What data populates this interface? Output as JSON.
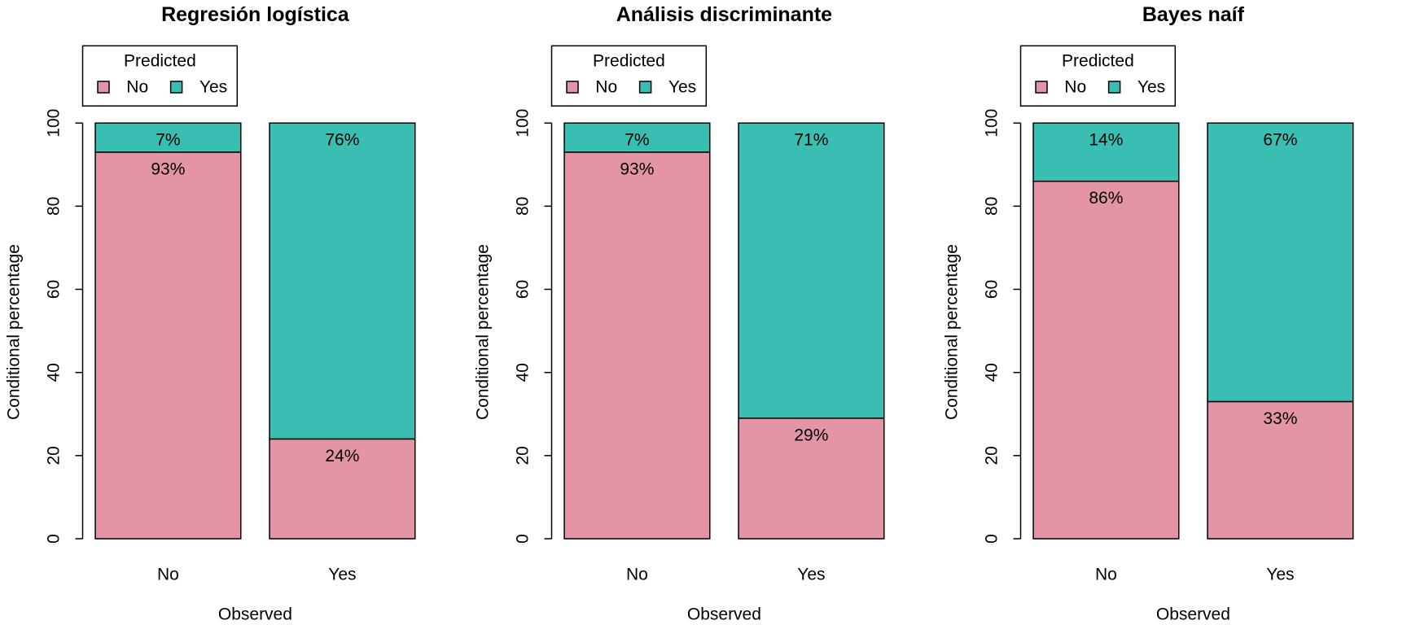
{
  "chart_data": [
    {
      "type": "bar",
      "stacking": "percent",
      "title": "Regresión logística",
      "xlabel": "Observed",
      "ylabel": "Conditional percentage",
      "ylim": [
        0,
        100
      ],
      "yticks": [
        0,
        20,
        40,
        60,
        80,
        100
      ],
      "grid": false,
      "categories": [
        "No",
        "Yes"
      ],
      "legend": {
        "title": "Predicted",
        "placement": "top-left"
      },
      "series": [
        {
          "name": "No",
          "color": "#E495A5",
          "values": [
            93,
            24
          ],
          "labels": [
            "93%",
            "24%"
          ]
        },
        {
          "name": "Yes",
          "color": "#39BEB1",
          "values": [
            7,
            76
          ],
          "labels": [
            "7%",
            "76%"
          ]
        }
      ]
    },
    {
      "type": "bar",
      "stacking": "percent",
      "title": "Análisis discriminante",
      "xlabel": "Observed",
      "ylabel": "Conditional percentage",
      "ylim": [
        0,
        100
      ],
      "yticks": [
        0,
        20,
        40,
        60,
        80,
        100
      ],
      "grid": false,
      "categories": [
        "No",
        "Yes"
      ],
      "legend": {
        "title": "Predicted",
        "placement": "top-left"
      },
      "series": [
        {
          "name": "No",
          "color": "#E495A5",
          "values": [
            93,
            29
          ],
          "labels": [
            "93%",
            "29%"
          ]
        },
        {
          "name": "Yes",
          "color": "#39BEB1",
          "values": [
            7,
            71
          ],
          "labels": [
            "7%",
            "71%"
          ]
        }
      ]
    },
    {
      "type": "bar",
      "stacking": "percent",
      "title": "Bayes naíf",
      "xlabel": "Observed",
      "ylabel": "Conditional percentage",
      "ylim": [
        0,
        100
      ],
      "yticks": [
        0,
        20,
        40,
        60,
        80,
        100
      ],
      "grid": false,
      "categories": [
        "No",
        "Yes"
      ],
      "legend": {
        "title": "Predicted",
        "placement": "top-left"
      },
      "series": [
        {
          "name": "No",
          "color": "#E495A5",
          "values": [
            86,
            33
          ],
          "labels": [
            "86%",
            "33%"
          ]
        },
        {
          "name": "Yes",
          "color": "#39BEB1",
          "values": [
            14,
            67
          ],
          "labels": [
            "14%",
            "67%"
          ]
        }
      ]
    }
  ]
}
